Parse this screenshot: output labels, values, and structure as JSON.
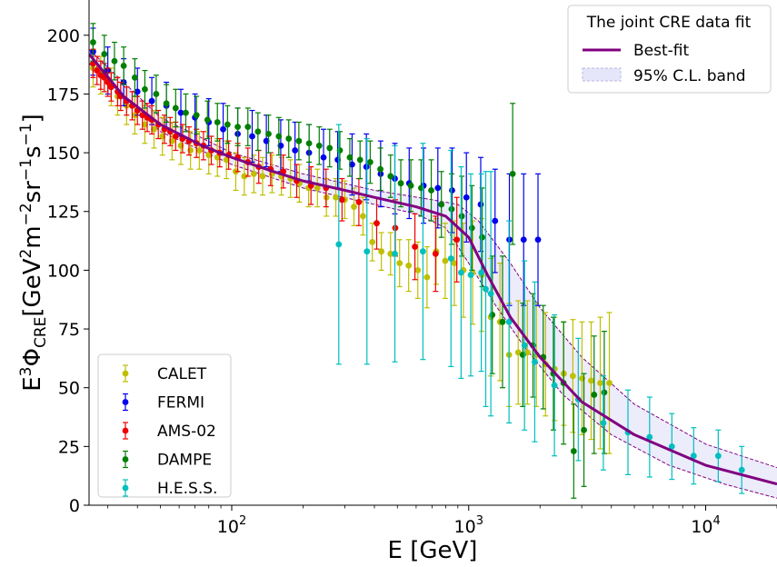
{
  "chart_data": {
    "type": "scatter",
    "xlabel": "E [GeV]",
    "ylabel_parts": {
      "base": "E",
      "exp": "3",
      "phi": "Φ",
      "sub": "CRE",
      "unit": "[GeV",
      "u1": "2",
      "m": "m",
      "u2": "−2",
      "sr": "sr",
      "u3": "−1",
      "s": "s",
      "u4": "−1",
      "close": "]"
    },
    "x_scale": "log",
    "xlim": [
      25,
      20000
    ],
    "ylim": [
      0,
      215
    ],
    "x_ticks": [
      {
        "value": 100,
        "base": "10",
        "exp": "2"
      },
      {
        "value": 1000,
        "base": "10",
        "exp": "3"
      },
      {
        "value": 10000,
        "base": "10",
        "exp": "4"
      }
    ],
    "y_ticks": [
      0,
      25,
      50,
      75,
      100,
      125,
      150,
      175,
      200
    ],
    "legend_top": {
      "title": "The joint CRE data fit",
      "entries": [
        {
          "label": "Best-fit",
          "kind": "line",
          "color": "#800080"
        },
        {
          "label": "95% C.L. band",
          "kind": "band",
          "color": "#e6e6fa"
        }
      ],
      "placement": "top-right"
    },
    "legend_bottom": {
      "placement": "bottom-left",
      "entries": [
        "CALET",
        "FERMI",
        "AMS-02",
        "DAMPE",
        "H.E.S.S."
      ]
    },
    "best_fit": {
      "color": "#800080",
      "points": [
        [
          25,
          192
        ],
        [
          35,
          174
        ],
        [
          50,
          162
        ],
        [
          75,
          153
        ],
        [
          100,
          148
        ],
        [
          150,
          142
        ],
        [
          200,
          138
        ],
        [
          300,
          134
        ],
        [
          400,
          131
        ],
        [
          600,
          127
        ],
        [
          800,
          123
        ],
        [
          1000,
          114
        ],
        [
          1200,
          98
        ],
        [
          1500,
          80
        ],
        [
          2000,
          63
        ],
        [
          3000,
          44
        ],
        [
          5000,
          30
        ],
        [
          10000,
          17
        ],
        [
          20000,
          9
        ]
      ]
    },
    "band": {
      "color": "#e6e6fa",
      "upper": [
        [
          25,
          194
        ],
        [
          50,
          165
        ],
        [
          100,
          150
        ],
        [
          200,
          141
        ],
        [
          400,
          134
        ],
        [
          700,
          130
        ],
        [
          900,
          128
        ],
        [
          1100,
          121
        ],
        [
          1500,
          103
        ],
        [
          2000,
          84
        ],
        [
          3000,
          63
        ],
        [
          5000,
          43
        ],
        [
          10000,
          26
        ],
        [
          20000,
          16
        ]
      ],
      "lower": [
        [
          25,
          188
        ],
        [
          50,
          159
        ],
        [
          100,
          145
        ],
        [
          200,
          135
        ],
        [
          400,
          128
        ],
        [
          600,
          124
        ],
        [
          800,
          118
        ],
        [
          1000,
          103
        ],
        [
          1300,
          85
        ],
        [
          1700,
          68
        ],
        [
          2500,
          47
        ],
        [
          4000,
          30
        ],
        [
          7000,
          17
        ],
        [
          12000,
          9
        ],
        [
          20000,
          3
        ]
      ]
    },
    "series": [
      {
        "name": "CALET",
        "color": "#bfbf00",
        "points": [
          [
            26,
            186,
            8
          ],
          [
            28,
            183,
            8
          ],
          [
            31,
            178,
            8
          ],
          [
            33,
            174,
            8
          ],
          [
            36,
            170,
            8
          ],
          [
            39,
            166,
            8
          ],
          [
            43,
            162,
            8
          ],
          [
            47,
            160,
            8
          ],
          [
            51,
            157,
            8
          ],
          [
            56,
            155,
            8
          ],
          [
            61,
            153,
            8
          ],
          [
            67,
            151,
            8
          ],
          [
            73,
            151,
            8
          ],
          [
            80,
            149,
            8
          ],
          [
            87,
            148,
            8
          ],
          [
            95,
            147,
            8
          ],
          [
            104,
            142,
            8
          ],
          [
            113,
            140,
            8
          ],
          [
            124,
            141,
            8
          ],
          [
            135,
            140,
            8
          ],
          [
            148,
            141,
            8
          ],
          [
            162,
            140,
            8
          ],
          [
            177,
            139,
            8
          ],
          [
            193,
            137,
            8
          ],
          [
            211,
            135,
            8
          ],
          [
            230,
            135,
            8
          ],
          [
            251,
            131,
            8
          ],
          [
            275,
            131,
            8
          ],
          [
            300,
            130,
            8
          ],
          [
            328,
            127,
            8
          ],
          [
            358,
            123,
            8
          ],
          [
            392,
            112,
            8
          ],
          [
            428,
            108,
            8
          ],
          [
            468,
            107,
            9
          ],
          [
            511,
            103,
            10
          ],
          [
            558,
            102,
            11
          ],
          [
            610,
            100,
            12
          ],
          [
            667,
            97,
            13
          ],
          [
            729,
            108,
            14
          ],
          [
            796,
            104,
            16
          ],
          [
            870,
            103,
            18
          ],
          [
            950,
            100,
            20
          ],
          [
            1039,
            99,
            22
          ],
          [
            1135,
            98,
            24
          ],
          [
            1240,
            80,
            25
          ],
          [
            1355,
            78,
            25
          ],
          [
            1480,
            64,
            22
          ],
          [
            1618,
            65,
            22
          ],
          [
            1768,
            65,
            22
          ],
          [
            1931,
            64,
            22
          ],
          [
            2110,
            60,
            22
          ],
          [
            2306,
            58,
            22
          ],
          [
            2519,
            56,
            22
          ],
          [
            2752,
            55,
            24
          ],
          [
            3007,
            54,
            24
          ],
          [
            3286,
            53,
            25
          ],
          [
            3590,
            52,
            28
          ],
          [
            3922,
            52,
            30
          ]
        ]
      },
      {
        "name": "FERMI",
        "color": "#0000ee",
        "points": [
          [
            26,
            193,
            10
          ],
          [
            30,
            185,
            10
          ],
          [
            35,
            180,
            10
          ],
          [
            40,
            176,
            10
          ],
          [
            46,
            172,
            10
          ],
          [
            53,
            170,
            10
          ],
          [
            61,
            167,
            10
          ],
          [
            70,
            165,
            10
          ],
          [
            80,
            163,
            10
          ],
          [
            92,
            160,
            11
          ],
          [
            106,
            158,
            11
          ],
          [
            122,
            157,
            11
          ],
          [
            140,
            155,
            11
          ],
          [
            161,
            153,
            11
          ],
          [
            185,
            151,
            12
          ],
          [
            212,
            150,
            12
          ],
          [
            244,
            148,
            12
          ],
          [
            280,
            147,
            12
          ],
          [
            322,
            145,
            13
          ],
          [
            370,
            144,
            14
          ],
          [
            425,
            141,
            14
          ],
          [
            488,
            139,
            15
          ],
          [
            561,
            137,
            15
          ],
          [
            645,
            136,
            16
          ],
          [
            741,
            135,
            17
          ],
          [
            851,
            134,
            18
          ],
          [
            978,
            131,
            19
          ],
          [
            1124,
            128,
            20
          ],
          [
            1292,
            121,
            22
          ],
          [
            1485,
            113,
            28
          ],
          [
            1706,
            113,
            28
          ],
          [
            1961,
            113,
            28
          ]
        ]
      },
      {
        "name": "AMS-02",
        "color": "#ee0000",
        "points": [
          [
            26,
            188,
            6
          ],
          [
            27,
            185,
            6
          ],
          [
            28,
            183,
            6
          ],
          [
            29,
            182,
            6
          ],
          [
            30,
            180,
            6
          ],
          [
            31,
            178,
            6
          ],
          [
            33,
            176,
            6
          ],
          [
            34,
            174,
            6
          ],
          [
            36,
            172,
            6
          ],
          [
            38,
            170,
            6
          ],
          [
            40,
            168,
            6
          ],
          [
            42,
            166,
            6
          ],
          [
            44,
            165,
            6
          ],
          [
            46,
            164,
            6
          ],
          [
            49,
            162,
            6
          ],
          [
            52,
            160,
            6
          ],
          [
            55,
            159,
            6
          ],
          [
            58,
            157,
            6
          ],
          [
            62,
            156,
            6
          ],
          [
            66,
            155,
            6
          ],
          [
            71,
            154,
            6
          ],
          [
            76,
            153,
            6
          ],
          [
            82,
            151,
            6
          ],
          [
            89,
            150,
            6
          ],
          [
            97,
            149,
            6
          ],
          [
            106,
            148,
            6
          ],
          [
            117,
            146,
            6
          ],
          [
            130,
            144,
            7
          ],
          [
            146,
            143,
            7
          ],
          [
            165,
            142,
            7
          ],
          [
            188,
            138,
            7
          ],
          [
            216,
            136,
            8
          ],
          [
            250,
            135,
            8
          ],
          [
            292,
            130,
            9
          ],
          [
            344,
            129,
            10
          ],
          [
            409,
            120,
            11
          ],
          [
            490,
            118,
            12
          ],
          [
            593,
            110,
            14
          ],
          [
            725,
            107,
            16
          ],
          [
            891,
            113,
            18
          ]
        ]
      },
      {
        "name": "DAMPE",
        "color": "#007f00",
        "points": [
          [
            26,
            197,
            8
          ],
          [
            29,
            192,
            8
          ],
          [
            32,
            189,
            8
          ],
          [
            35,
            187,
            8
          ],
          [
            39,
            182,
            8
          ],
          [
            43,
            177,
            8
          ],
          [
            48,
            175,
            8
          ],
          [
            53,
            171,
            8
          ],
          [
            58,
            169,
            8
          ],
          [
            64,
            167,
            8
          ],
          [
            71,
            166,
            8
          ],
          [
            79,
            164,
            8
          ],
          [
            87,
            163,
            8
          ],
          [
            96,
            162,
            8
          ],
          [
            106,
            161,
            8
          ],
          [
            117,
            161,
            8
          ],
          [
            129,
            159,
            8
          ],
          [
            143,
            158,
            8
          ],
          [
            158,
            157,
            8
          ],
          [
            174,
            156,
            8
          ],
          [
            192,
            155,
            8
          ],
          [
            212,
            154,
            8
          ],
          [
            234,
            153,
            8
          ],
          [
            259,
            152,
            8
          ],
          [
            286,
            151,
            8
          ],
          [
            315,
            148,
            8
          ],
          [
            348,
            147,
            8
          ],
          [
            384,
            146,
            9
          ],
          [
            424,
            143,
            9
          ],
          [
            468,
            140,
            9
          ],
          [
            517,
            137,
            10
          ],
          [
            570,
            136,
            11
          ],
          [
            630,
            135,
            12
          ],
          [
            695,
            134,
            13
          ],
          [
            767,
            128,
            14
          ],
          [
            847,
            126,
            15
          ],
          [
            935,
            123,
            17
          ],
          [
            1032,
            118,
            18
          ],
          [
            1140,
            114,
            21
          ],
          [
            1258,
            81,
            25
          ],
          [
            1389,
            78,
            28
          ],
          [
            1533,
            141,
            30
          ],
          [
            1692,
            64,
            22
          ],
          [
            1868,
            68,
            22
          ],
          [
            2063,
            63,
            22
          ],
          [
            2277,
            56,
            24
          ],
          [
            2514,
            52,
            26
          ],
          [
            2775,
            23,
            20
          ],
          [
            3064,
            32,
            24
          ],
          [
            3383,
            47,
            25
          ],
          [
            3734,
            48,
            26
          ]
        ]
      },
      {
        "name": "H.E.S.S.",
        "color": "#00bfbf",
        "points": [
          [
            283,
            111,
            51
          ],
          [
            372,
            108,
            48
          ],
          [
            488,
            107,
            46
          ],
          [
            641,
            108,
            46
          ],
          [
            842,
            105,
            46
          ],
          [
            929,
            99,
            45
          ],
          [
            1020,
            98,
            43
          ],
          [
            1130,
            99,
            42
          ],
          [
            1180,
            92,
            50
          ],
          [
            1240,
            90,
            52
          ],
          [
            1480,
            78,
            43
          ],
          [
            1720,
            68,
            36
          ],
          [
            1900,
            61,
            34
          ],
          [
            2300,
            51,
            30
          ],
          [
            2900,
            45,
            26
          ],
          [
            3700,
            35,
            20
          ],
          [
            4700,
            31,
            18
          ],
          [
            5800,
            29,
            17
          ],
          [
            7200,
            25,
            14
          ],
          [
            8900,
            21,
            12
          ],
          [
            11300,
            21,
            11
          ],
          [
            14200,
            15,
            10
          ]
        ]
      }
    ]
  }
}
